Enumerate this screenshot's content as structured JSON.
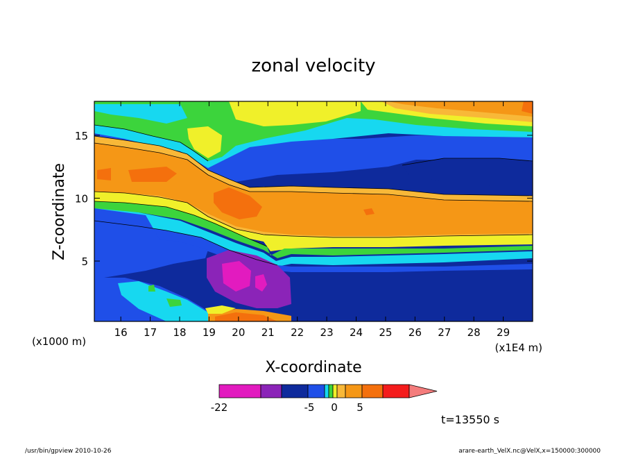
{
  "chart_data": {
    "type": "heatmap",
    "title": "zonal velocity",
    "xlabel": "X-coordinate",
    "ylabel": "Z-coordinate",
    "x_unit_left": "(x1000 m)",
    "x_unit_right": "(x1E4 m)",
    "xlim": [
      15.1,
      30.0
    ],
    "ylim": [
      0.2,
      17.7
    ],
    "x_ticks": [
      "16",
      "17",
      "18",
      "19",
      "20",
      "21",
      "22",
      "23",
      "24",
      "25",
      "26",
      "27",
      "28",
      "29"
    ],
    "x_tick_values": [
      16,
      17,
      18,
      19,
      20,
      21,
      22,
      23,
      24,
      25,
      26,
      27,
      28,
      29
    ],
    "y_ticks": [
      "5",
      "10",
      "15"
    ],
    "y_tick_values": [
      5,
      10,
      15
    ],
    "colorbar": {
      "tick_labels": [
        "-22",
        "-5",
        "0",
        "5"
      ],
      "colors": [
        "#e21bbf",
        "#8b24b8",
        "#0e2a9c",
        "#1f4fe8",
        "#17d8f0",
        "#3cd43c",
        "#f0f02a",
        "#f8b838",
        "#f59716",
        "#f4700d",
        "#f41c1c",
        "#f47c7c"
      ]
    },
    "time_label": "t=13550 s",
    "footer_left": "/usr/bin/gpview   2010-10-26",
    "footer_right": "arare-earth_VelX.nc@VelX,x=150000:300000"
  }
}
